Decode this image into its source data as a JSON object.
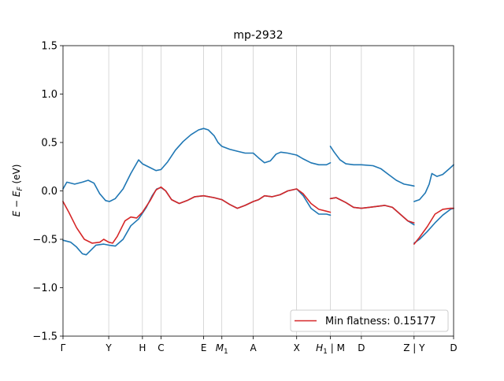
{
  "chart_data": {
    "type": "line",
    "title": "mp-2932",
    "ylabel_main": "E − E",
    "ylabel_sub": "F",
    "ylabel_tail": " (eV)",
    "ylim": [
      -1.5,
      1.5
    ],
    "xlim": [
      0,
      10.08
    ],
    "grid": false,
    "legend_placement": "lower-right",
    "yticks": [
      {
        "value": -1.5,
        "label": "−1.5"
      },
      {
        "value": -1.0,
        "label": "−1.0"
      },
      {
        "value": -0.5,
        "label": "−0.5"
      },
      {
        "value": 0.0,
        "label": "0.0"
      },
      {
        "value": 0.5,
        "label": "0.5"
      },
      {
        "value": 1.0,
        "label": "1.0"
      },
      {
        "value": 1.5,
        "label": "1.5"
      }
    ],
    "xticks": [
      {
        "value": 0.0,
        "label": "Γ"
      },
      {
        "value": 1.18,
        "label": "Y"
      },
      {
        "value": 2.05,
        "label": "H"
      },
      {
        "value": 2.53,
        "label": "C"
      },
      {
        "value": 3.63,
        "label": "E"
      },
      {
        "value": 4.1,
        "label": "M",
        "sub": "1"
      },
      {
        "value": 4.91,
        "label": "A"
      },
      {
        "value": 6.03,
        "label": "X"
      },
      {
        "value": 6.9,
        "label": "H",
        "sub": "1",
        "tail": " | M"
      },
      {
        "value": 7.7,
        "label": "D"
      },
      {
        "value": 9.06,
        "label": "Z | Y"
      },
      {
        "value": 10.08,
        "label": "D"
      }
    ],
    "series": [
      {
        "name": "",
        "color": "#1f77b4",
        "segments": [
          [
            [
              0.0,
              0.02
            ],
            [
              0.1,
              0.09
            ],
            [
              0.3,
              0.07
            ],
            [
              0.5,
              0.09
            ],
            [
              0.65,
              0.11
            ],
            [
              0.8,
              0.08
            ],
            [
              0.95,
              -0.03
            ],
            [
              1.1,
              -0.1
            ],
            [
              1.2,
              -0.11
            ],
            [
              1.35,
              -0.08
            ],
            [
              1.55,
              0.02
            ],
            [
              1.75,
              0.18
            ],
            [
              1.95,
              0.32
            ],
            [
              2.05,
              0.28
            ],
            [
              2.25,
              0.24
            ],
            [
              2.4,
              0.21
            ],
            [
              2.53,
              0.22
            ],
            [
              2.7,
              0.3
            ],
            [
              2.9,
              0.42
            ],
            [
              3.1,
              0.51
            ],
            [
              3.3,
              0.58
            ],
            [
              3.5,
              0.63
            ],
            [
              3.63,
              0.645
            ],
            [
              3.75,
              0.63
            ],
            [
              3.9,
              0.57
            ],
            [
              4.0,
              0.5
            ],
            [
              4.1,
              0.46
            ],
            [
              4.3,
              0.43
            ],
            [
              4.5,
              0.41
            ],
            [
              4.7,
              0.39
            ],
            [
              4.91,
              0.39
            ],
            [
              5.05,
              0.34
            ],
            [
              5.2,
              0.29
            ],
            [
              5.35,
              0.31
            ],
            [
              5.5,
              0.38
            ],
            [
              5.62,
              0.4
            ],
            [
              5.8,
              0.39
            ],
            [
              6.03,
              0.37
            ],
            [
              6.2,
              0.33
            ],
            [
              6.4,
              0.29
            ],
            [
              6.6,
              0.27
            ],
            [
              6.8,
              0.27
            ],
            [
              6.9,
              0.29
            ]
          ],
          [
            [
              6.9,
              0.46
            ],
            [
              7.0,
              0.4
            ],
            [
              7.15,
              0.32
            ],
            [
              7.3,
              0.28
            ],
            [
              7.5,
              0.27
            ],
            [
              7.7,
              0.27
            ],
            [
              8.0,
              0.26
            ],
            [
              8.2,
              0.23
            ],
            [
              8.4,
              0.17
            ],
            [
              8.6,
              0.11
            ],
            [
              8.8,
              0.07
            ],
            [
              9.0,
              0.055
            ],
            [
              9.06,
              0.05
            ]
          ],
          [
            [
              9.06,
              -0.11
            ],
            [
              9.2,
              -0.09
            ],
            [
              9.35,
              -0.02
            ],
            [
              9.45,
              0.07
            ],
            [
              9.52,
              0.18
            ],
            [
              9.65,
              0.15
            ],
            [
              9.8,
              0.17
            ],
            [
              10.0,
              0.24
            ],
            [
              10.08,
              0.27
            ]
          ],
          [
            [
              0.0,
              -0.51
            ],
            [
              0.2,
              -0.53
            ],
            [
              0.35,
              -0.58
            ],
            [
              0.5,
              -0.65
            ],
            [
              0.6,
              -0.66
            ],
            [
              0.7,
              -0.62
            ],
            [
              0.85,
              -0.56
            ],
            [
              1.05,
              -0.55
            ],
            [
              1.18,
              -0.56
            ],
            [
              1.35,
              -0.57
            ],
            [
              1.55,
              -0.5
            ],
            [
              1.75,
              -0.36
            ],
            [
              1.95,
              -0.29
            ],
            [
              2.15,
              -0.17
            ],
            [
              2.3,
              -0.05
            ],
            [
              2.42,
              0.02
            ],
            [
              2.53,
              0.035
            ],
            [
              2.65,
              0.0
            ],
            [
              2.8,
              -0.09
            ],
            [
              3.0,
              -0.13
            ],
            [
              3.2,
              -0.1
            ],
            [
              3.4,
              -0.06
            ],
            [
              3.63,
              -0.05
            ],
            [
              3.9,
              -0.07
            ],
            [
              4.1,
              -0.09
            ],
            [
              4.3,
              -0.14
            ],
            [
              4.5,
              -0.18
            ],
            [
              4.7,
              -0.15
            ],
            [
              4.91,
              -0.11
            ],
            [
              5.05,
              -0.09
            ],
            [
              5.2,
              -0.05
            ],
            [
              5.4,
              -0.06
            ],
            [
              5.6,
              -0.04
            ],
            [
              5.8,
              0.0
            ],
            [
              6.03,
              0.02
            ],
            [
              6.2,
              -0.05
            ],
            [
              6.4,
              -0.18
            ],
            [
              6.6,
              -0.24
            ],
            [
              6.8,
              -0.24
            ],
            [
              6.9,
              -0.25
            ]
          ],
          [
            [
              6.9,
              -0.08
            ],
            [
              7.05,
              -0.07
            ],
            [
              7.3,
              -0.12
            ],
            [
              7.5,
              -0.17
            ],
            [
              7.7,
              -0.18
            ],
            [
              7.9,
              -0.17
            ],
            [
              8.1,
              -0.16
            ],
            [
              8.3,
              -0.15
            ],
            [
              8.5,
              -0.17
            ],
            [
              8.7,
              -0.24
            ],
            [
              8.9,
              -0.31
            ],
            [
              9.06,
              -0.35
            ]
          ],
          [
            [
              9.06,
              -0.54
            ],
            [
              9.2,
              -0.5
            ],
            [
              9.4,
              -0.42
            ],
            [
              9.6,
              -0.33
            ],
            [
              9.8,
              -0.25
            ],
            [
              10.0,
              -0.19
            ],
            [
              10.08,
              -0.18
            ]
          ]
        ]
      },
      {
        "name": "Min flatness: 0.15177",
        "color": "#d62728",
        "segments": [
          [
            [
              0.0,
              -0.11
            ],
            [
              0.15,
              -0.22
            ],
            [
              0.35,
              -0.38
            ],
            [
              0.55,
              -0.5
            ],
            [
              0.75,
              -0.54
            ],
            [
              0.95,
              -0.53
            ],
            [
              1.05,
              -0.5
            ],
            [
              1.18,
              -0.53
            ],
            [
              1.28,
              -0.54
            ],
            [
              1.4,
              -0.47
            ],
            [
              1.6,
              -0.31
            ],
            [
              1.75,
              -0.27
            ],
            [
              1.9,
              -0.28
            ],
            [
              2.05,
              -0.22
            ],
            [
              2.25,
              -0.1
            ],
            [
              2.4,
              0.01
            ],
            [
              2.53,
              0.04
            ],
            [
              2.65,
              0.0
            ],
            [
              2.8,
              -0.09
            ],
            [
              3.0,
              -0.13
            ],
            [
              3.2,
              -0.1
            ],
            [
              3.4,
              -0.06
            ],
            [
              3.63,
              -0.05
            ],
            [
              3.9,
              -0.07
            ],
            [
              4.1,
              -0.09
            ],
            [
              4.3,
              -0.14
            ],
            [
              4.5,
              -0.18
            ],
            [
              4.7,
              -0.15
            ],
            [
              4.91,
              -0.11
            ],
            [
              5.05,
              -0.09
            ],
            [
              5.2,
              -0.05
            ],
            [
              5.4,
              -0.06
            ],
            [
              5.6,
              -0.04
            ],
            [
              5.8,
              0.0
            ],
            [
              6.03,
              0.02
            ],
            [
              6.2,
              -0.03
            ],
            [
              6.4,
              -0.13
            ],
            [
              6.6,
              -0.19
            ],
            [
              6.8,
              -0.21
            ],
            [
              6.9,
              -0.22
            ]
          ],
          [
            [
              6.9,
              -0.08
            ],
            [
              7.05,
              -0.07
            ],
            [
              7.3,
              -0.12
            ],
            [
              7.5,
              -0.17
            ],
            [
              7.7,
              -0.18
            ],
            [
              7.9,
              -0.17
            ],
            [
              8.1,
              -0.16
            ],
            [
              8.3,
              -0.15
            ],
            [
              8.5,
              -0.17
            ],
            [
              8.7,
              -0.24
            ],
            [
              8.9,
              -0.31
            ],
            [
              9.06,
              -0.33
            ]
          ],
          [
            [
              9.06,
              -0.55
            ],
            [
              9.2,
              -0.48
            ],
            [
              9.4,
              -0.37
            ],
            [
              9.6,
              -0.24
            ],
            [
              9.8,
              -0.19
            ],
            [
              10.0,
              -0.18
            ],
            [
              10.08,
              -0.18
            ]
          ]
        ]
      }
    ],
    "legend": {
      "label": "Min flatness: 0.15177",
      "color": "#d62728"
    }
  }
}
